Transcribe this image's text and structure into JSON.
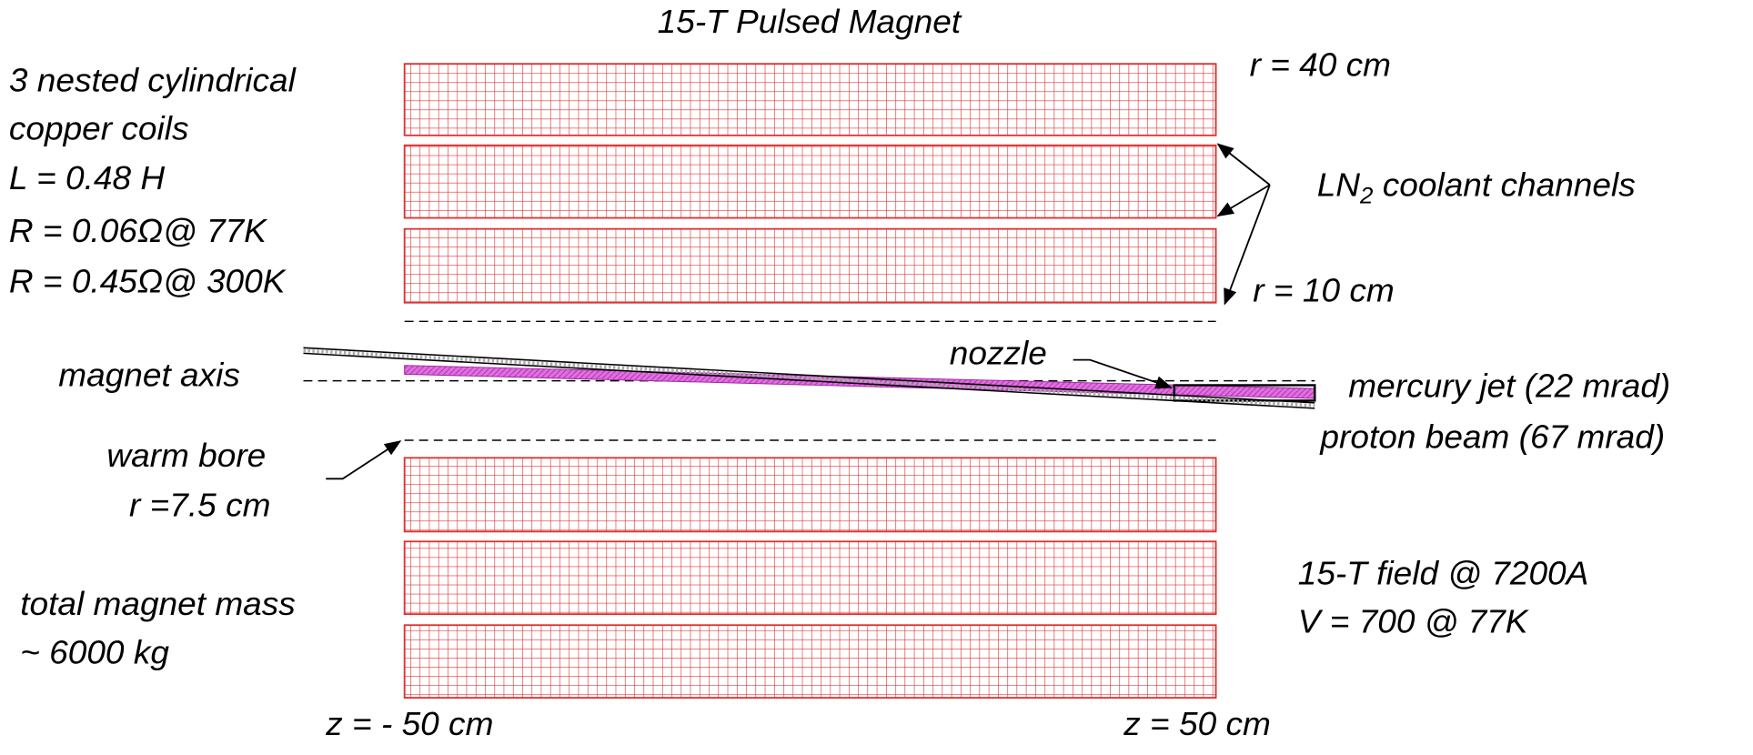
{
  "title": "15-T Pulsed Magnet",
  "coil_description": [
    "3 nested cylindrical",
    "copper coils",
    "L = 0.48 H",
    "R = 0.06Ω@ 77K",
    "R = 0.45Ω@ 300K"
  ],
  "outer_radius": "r = 40 cm",
  "coolant": {
    "main": "LN",
    "subscript": "2",
    "rest": " coolant channels"
  },
  "inner_radius": "r = 10 cm",
  "nozzle": "nozzle",
  "magnet_axis": "magnet axis",
  "mercury_jet": "mercury jet (22 mrad)",
  "proton_beam": "proton beam (67 mrad)",
  "warm_bore": [
    "warm bore",
    "r =7.5 cm"
  ],
  "field": [
    "15-T field @ 7200A",
    "V = 700 @ 77K"
  ],
  "mass": [
    "total magnet mass",
    "~ 6000 kg"
  ],
  "z_left": "z = - 50 cm",
  "z_right": "z = 50 cm"
}
